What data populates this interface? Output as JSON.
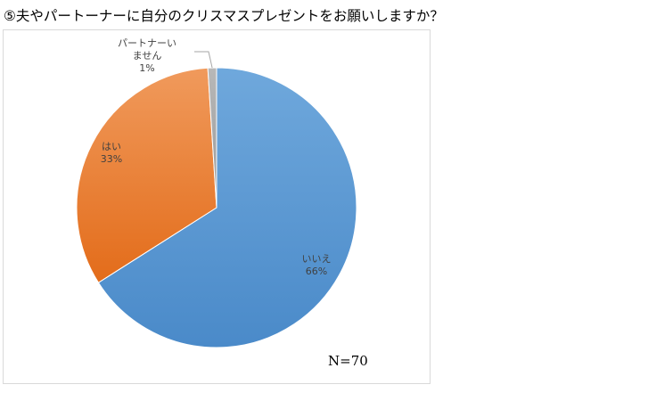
{
  "chart_data": {
    "type": "pie",
    "title": "⑤夫やパートーナーに自分のクリスマスプレゼントをお願いしますか？",
    "categories": [
      "いいえ",
      "はい",
      "パートナーいません"
    ],
    "values": [
      66,
      33,
      1
    ],
    "value_labels": [
      "66%",
      "33%",
      "1%"
    ],
    "colors": [
      "#5b9bd5",
      "#ed7d31",
      "#a5a5a5"
    ],
    "annotation": "N=70"
  }
}
